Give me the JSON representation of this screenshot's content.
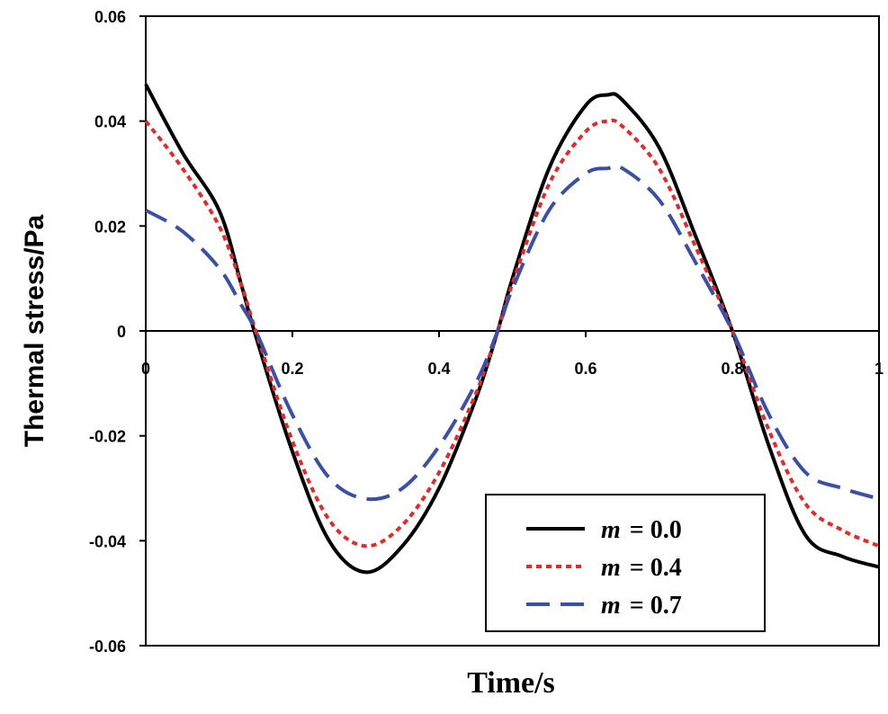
{
  "chart_data": {
    "type": "line",
    "xlabel": "Time/s",
    "ylabel": "Thermal stress/Pa",
    "xlim": [
      0,
      1
    ],
    "ylim": [
      -0.06,
      0.06
    ],
    "xticks": [
      0,
      0.2,
      0.4,
      0.6,
      0.8,
      1
    ],
    "xtick_labels": [
      "0",
      "0.2",
      "0.4",
      "0.6",
      "0.8",
      "1"
    ],
    "yticks": [
      0.06,
      0.04,
      0.02,
      0,
      -0.02,
      -0.04,
      -0.06
    ],
    "ytick_labels": [
      "0.06",
      "0.04",
      "0.02",
      "0",
      "-0.02",
      "-0.04",
      "-0.06"
    ],
    "grid": false,
    "legend_position": "bottom-right",
    "series": [
      {
        "name": "m = 0.0",
        "label_prefix": "m",
        "label_suffix": "= 0.0",
        "color": "#000000",
        "style": "solid",
        "x": [
          0,
          0.05,
          0.1,
          0.13,
          0.15,
          0.2,
          0.25,
          0.3,
          0.35,
          0.4,
          0.45,
          0.48,
          0.5,
          0.55,
          0.6,
          0.63,
          0.65,
          0.7,
          0.75,
          0.8,
          0.85,
          0.9,
          0.95,
          1.0
        ],
        "values": [
          0.047,
          0.034,
          0.023,
          0.009,
          -0.001,
          -0.023,
          -0.04,
          -0.046,
          -0.041,
          -0.03,
          -0.013,
          0.0,
          0.01,
          0.031,
          0.043,
          0.045,
          0.044,
          0.035,
          0.018,
          0.0,
          -0.022,
          -0.039,
          -0.043,
          -0.045
        ]
      },
      {
        "name": "m = 0.4",
        "label_prefix": "m",
        "label_suffix": "= 0.4",
        "color": "#e82828",
        "style": "dotted",
        "x": [
          0,
          0.05,
          0.1,
          0.13,
          0.15,
          0.2,
          0.25,
          0.3,
          0.35,
          0.4,
          0.45,
          0.48,
          0.5,
          0.55,
          0.6,
          0.63,
          0.65,
          0.7,
          0.75,
          0.8,
          0.85,
          0.9,
          0.95,
          1.0
        ],
        "values": [
          0.04,
          0.031,
          0.02,
          0.009,
          0.0,
          -0.021,
          -0.036,
          -0.041,
          -0.037,
          -0.027,
          -0.012,
          0.0,
          0.009,
          0.028,
          0.038,
          0.04,
          0.039,
          0.031,
          0.016,
          0.0,
          -0.019,
          -0.033,
          -0.038,
          -0.041
        ]
      },
      {
        "name": "m = 0.7",
        "label_prefix": "m",
        "label_suffix": "= 0.7",
        "color": "#3a4fa8",
        "style": "dashed",
        "x": [
          0,
          0.05,
          0.1,
          0.13,
          0.15,
          0.2,
          0.25,
          0.3,
          0.35,
          0.4,
          0.45,
          0.48,
          0.5,
          0.55,
          0.6,
          0.63,
          0.65,
          0.7,
          0.75,
          0.8,
          0.85,
          0.9,
          0.95,
          1.0
        ],
        "values": [
          0.023,
          0.019,
          0.012,
          0.005,
          0.0,
          -0.016,
          -0.028,
          -0.032,
          -0.03,
          -0.022,
          -0.01,
          0.0,
          0.008,
          0.023,
          0.03,
          0.031,
          0.031,
          0.025,
          0.013,
          0.0,
          -0.016,
          -0.027,
          -0.03,
          -0.032
        ]
      }
    ]
  }
}
